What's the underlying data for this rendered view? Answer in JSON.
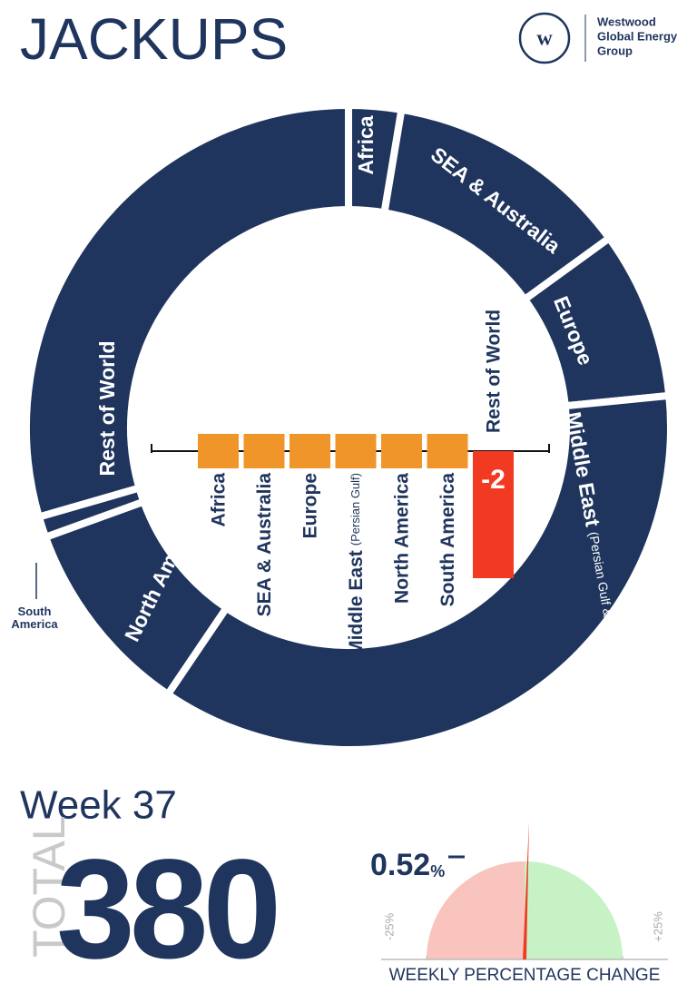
{
  "header": {
    "title": "JACKUPS",
    "logo": [
      "Westwood",
      "Global Energy",
      "Group"
    ]
  },
  "chart_data": [
    {
      "type": "donut",
      "categories": [
        "Africa",
        "SEA & Australia",
        "Europe",
        "Middle East",
        "North America",
        "South America",
        "Rest of World"
      ],
      "sublabels": [
        null,
        null,
        null,
        "(Persian Gulf & Red Sea)",
        null,
        null,
        null
      ],
      "values": [
        10,
        47,
        32,
        137,
        38,
        4,
        112
      ],
      "color": "#1f355e"
    },
    {
      "type": "bar",
      "categories": [
        "Africa",
        "SEA & Australia",
        "Europe",
        "Middle East",
        "North America",
        "South America",
        "Rest of World"
      ],
      "sublabels": [
        null,
        null,
        null,
        "(Persian Gulf)",
        null,
        null,
        null
      ],
      "values": [
        0,
        0,
        0,
        0,
        0,
        0,
        -2
      ],
      "colors": [
        "#f0952a",
        "#f0952a",
        "#f0952a",
        "#f0952a",
        "#f0952a",
        "#f0952a",
        "#f23a23"
      ],
      "data_labels": [
        false,
        false,
        false,
        false,
        false,
        false,
        true
      ]
    },
    {
      "type": "gauge",
      "title": "WEEKLY PERCENTAGE CHANGE",
      "value": 0.52,
      "value_label": "0.52",
      "unit": "%",
      "xlim": [
        -25,
        25
      ],
      "xticks": [
        {
          "value": -25,
          "label": "-25%"
        },
        {
          "value": 25,
          "label": "+25%"
        }
      ],
      "colors": [
        "#f9c4bd",
        "#c6f2c6",
        "#f23a23"
      ]
    }
  ],
  "summary": {
    "week": "Week 37",
    "total_label": "TOTAL",
    "total": 380
  }
}
